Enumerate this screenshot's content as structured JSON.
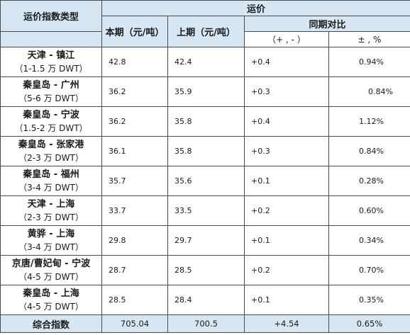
{
  "header": {
    "index_type": "运价指数类型",
    "freight": "运价",
    "current": "本期（元/吨）",
    "previous": "上期（元/吨）",
    "comparison": "同期对比",
    "diff": "（+ , - ）",
    "pct": "± , %"
  },
  "rows": [
    {
      "route": "天津 - 镇江",
      "size": "（1-1.5 万 DWT）",
      "current": "42.8",
      "previous": "42.4",
      "diff": "+0.4",
      "pct": "0.94%"
    },
    {
      "route": "秦皇岛 - 广州",
      "size": "（5-6 万 DWT）",
      "current": "36.2",
      "previous": "35.9",
      "diff": "+0.3",
      "pct": "0.84%"
    },
    {
      "route": "秦皇岛 - 宁波",
      "size": "（1.5-2 万 DWT）",
      "current": "36.2",
      "previous": "35.8",
      "diff": "+0.4",
      "pct": "1.12%"
    },
    {
      "route": "秦皇岛 - 张家港",
      "size": "（2-3 万 DWT）",
      "current": "36.1",
      "previous": "35.8",
      "diff": "+0.3",
      "pct": "0.84%"
    },
    {
      "route": "秦皇岛 - 福州",
      "size": "（3-4 万 DWT）",
      "current": "35.7",
      "previous": "35.6",
      "diff": "+0.1",
      "pct": "0.28%"
    },
    {
      "route": "天津 - 上海",
      "size": "（2-3 万 DWT）",
      "current": "33.7",
      "previous": "33.5",
      "diff": "+0.2",
      "pct": "0.60%"
    },
    {
      "route": "黄骅 - 上海",
      "size": "（3-4 万 DWT）",
      "current": "29.8",
      "previous": "29.7",
      "diff": "+0.1",
      "pct": "0.34%"
    },
    {
      "route": "京唐/曹妃甸 - 宁波",
      "size": "（4-5 万 DWT）",
      "current": "28.7",
      "previous": "28.5",
      "diff": "+0.2",
      "pct": "0.70%"
    },
    {
      "route": "秦皇岛 - 上海",
      "size": "（4-5 万 DWT）",
      "current": "28.5",
      "previous": "28.4",
      "diff": "+0.1",
      "pct": "0.35%"
    }
  ],
  "total": {
    "label": "综合指数",
    "current": "705.04",
    "previous": "700.5",
    "diff": "+4.54",
    "pct": "0.65%"
  },
  "colors": {
    "header_bg": "#d6e6f2",
    "border": "#4a4a4a"
  }
}
